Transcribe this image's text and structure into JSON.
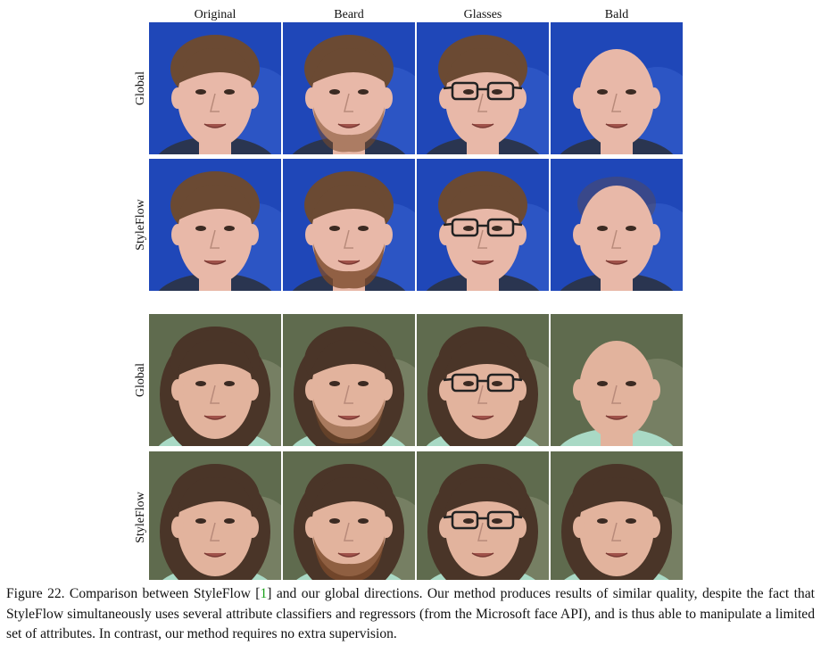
{
  "columns": [
    "Original",
    "Beard",
    "Glasses",
    "Bald"
  ],
  "groups": [
    {
      "rows": [
        "Global",
        "StyleFlow"
      ]
    },
    {
      "rows": [
        "Global",
        "StyleFlow"
      ]
    }
  ],
  "caption": {
    "before": "Figure 22. Comparison between StyleFlow [",
    "ref": "1",
    "after": "] and our global directions. Our method produces results of similar quality, despite the fact that StyleFlow simultaneously uses several attribute classifiers and regressors (from the Microsoft face API), and is thus able to manipulate a limited set of attributes. In contrast, our method requires no extra supervision."
  }
}
